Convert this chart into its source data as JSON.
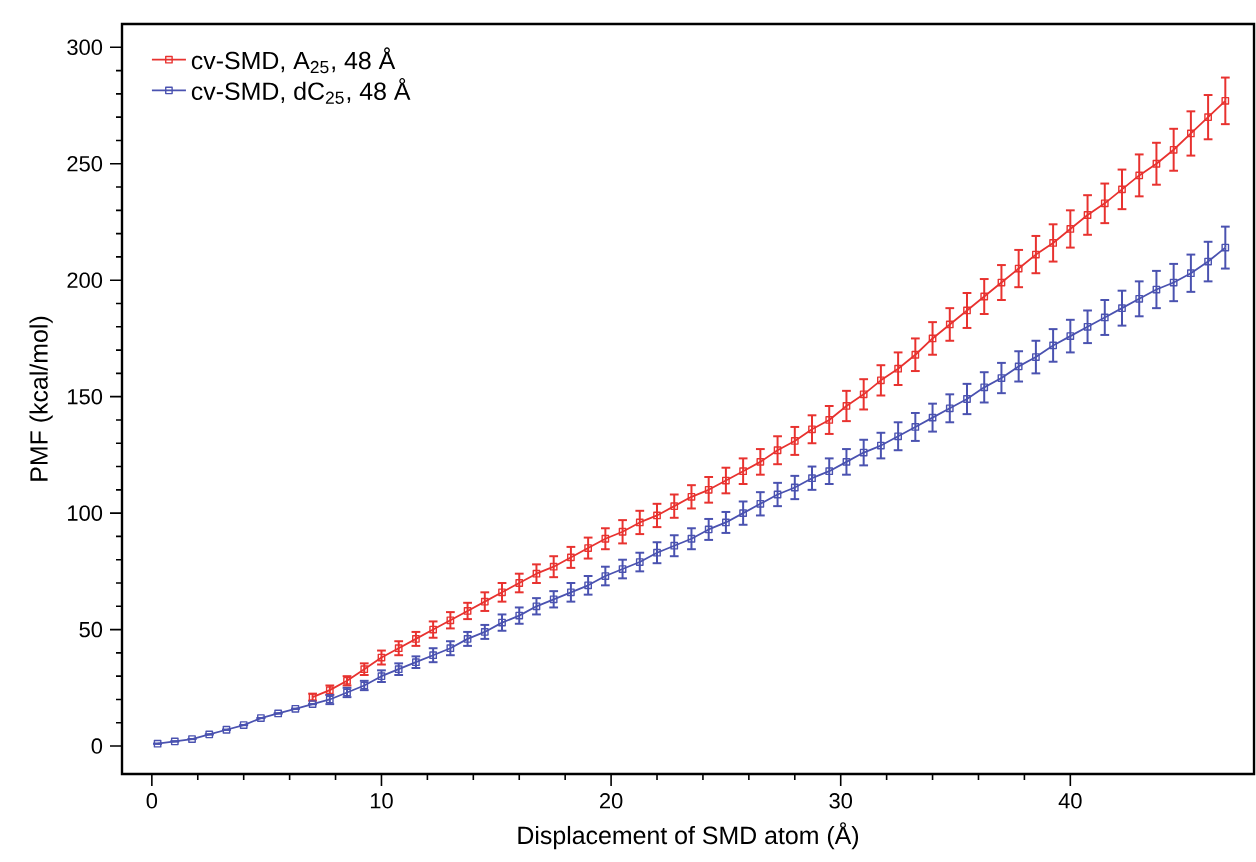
{
  "chart_data": {
    "type": "line",
    "xlabel": "Displacement of SMD atom (Å)",
    "ylabel": "PMF (kcal/mol)",
    "x": [
      0.25,
      1,
      1.75,
      2.5,
      3.25,
      4,
      4.75,
      5.5,
      6.25,
      7,
      7.75,
      8.5,
      9.25,
      10,
      10.75,
      11.5,
      12.25,
      13,
      13.75,
      14.5,
      15.25,
      16,
      16.75,
      17.5,
      18.25,
      19,
      19.75,
      20.5,
      21.25,
      22,
      22.75,
      23.5,
      24.25,
      25,
      25.75,
      26.5,
      27.25,
      28,
      28.75,
      29.5,
      30.25,
      31,
      31.75,
      32.5,
      33.25,
      34,
      34.75,
      35.5,
      36.25,
      37,
      37.75,
      38.5,
      39.25,
      40,
      40.75,
      41.5,
      42.25,
      43,
      43.75,
      44.5,
      45.25,
      46,
      46.75
    ],
    "series": [
      {
        "name": "cv-SMD, A$_{25}$, 48 Å",
        "color": "#e8322f",
        "values": [
          null,
          null,
          null,
          null,
          null,
          null,
          null,
          null,
          null,
          21,
          24,
          28,
          33,
          38,
          42,
          46,
          50,
          54,
          58,
          62,
          66,
          70,
          74,
          77,
          81,
          85,
          89,
          92,
          96,
          99,
          103,
          107,
          110,
          114,
          118,
          122,
          127,
          131,
          136,
          140,
          146,
          151,
          157,
          162,
          168,
          175,
          181,
          187,
          193,
          199,
          205,
          211,
          216,
          222,
          228,
          233,
          239,
          245,
          250,
          256,
          263,
          270,
          277
        ],
        "errors": [
          null,
          null,
          null,
          null,
          null,
          null,
          null,
          null,
          null,
          1.5,
          2,
          2,
          2.5,
          3,
          3,
          3,
          3.5,
          3.5,
          3.5,
          4,
          4,
          4,
          4,
          4.5,
          4.5,
          4.5,
          4.5,
          5,
          5,
          5,
          5,
          5,
          5.5,
          5.5,
          5.5,
          5.5,
          6,
          6,
          6,
          6,
          6.5,
          6.5,
          6.5,
          7,
          7,
          7,
          7,
          7.5,
          7.5,
          7.5,
          8,
          8,
          8,
          8,
          8.5,
          8.5,
          8.5,
          9,
          9,
          9,
          9.5,
          9.5,
          10
        ]
      },
      {
        "name": "cv-SMD, dC$_{25}$, 48 Å",
        "color": "#4a52b0",
        "values": [
          1,
          2,
          3,
          5,
          7,
          9,
          12,
          14,
          16,
          18,
          20,
          23,
          26,
          30,
          33,
          36,
          39,
          42,
          46,
          49,
          53,
          56,
          60,
          63,
          66,
          69,
          73,
          76,
          79,
          83,
          86,
          89,
          93,
          96,
          100,
          104,
          108,
          111,
          115,
          118,
          122,
          126,
          129,
          133,
          137,
          141,
          145,
          149,
          154,
          158,
          163,
          167,
          172,
          176,
          180,
          184,
          188,
          192,
          196,
          199,
          203,
          208,
          214
        ],
        "errors": [
          null,
          null,
          null,
          null,
          null,
          null,
          null,
          null,
          null,
          null,
          2,
          2,
          2,
          2.5,
          2.5,
          2.5,
          3,
          3,
          3,
          3,
          3.5,
          3.5,
          3.5,
          3.5,
          4,
          4,
          4,
          4,
          4,
          4.5,
          4.5,
          4.5,
          4.5,
          4.5,
          5,
          5,
          5,
          5,
          5,
          5.5,
          5.5,
          5.5,
          5.5,
          6,
          6,
          6,
          6,
          6.5,
          6.5,
          6.5,
          6.5,
          7,
          7,
          7,
          7,
          7.5,
          7.5,
          7.5,
          8,
          8,
          8,
          8.5,
          9
        ]
      }
    ],
    "xlim": [
      -1.3,
      48
    ],
    "ylim": [
      -12,
      310
    ],
    "xticks": [
      0,
      10,
      20,
      30,
      40
    ],
    "yticks": [
      0,
      50,
      100,
      150,
      200,
      250,
      300
    ],
    "legend": "top left",
    "marker": "square",
    "line_style": "solid",
    "grid": false
  }
}
